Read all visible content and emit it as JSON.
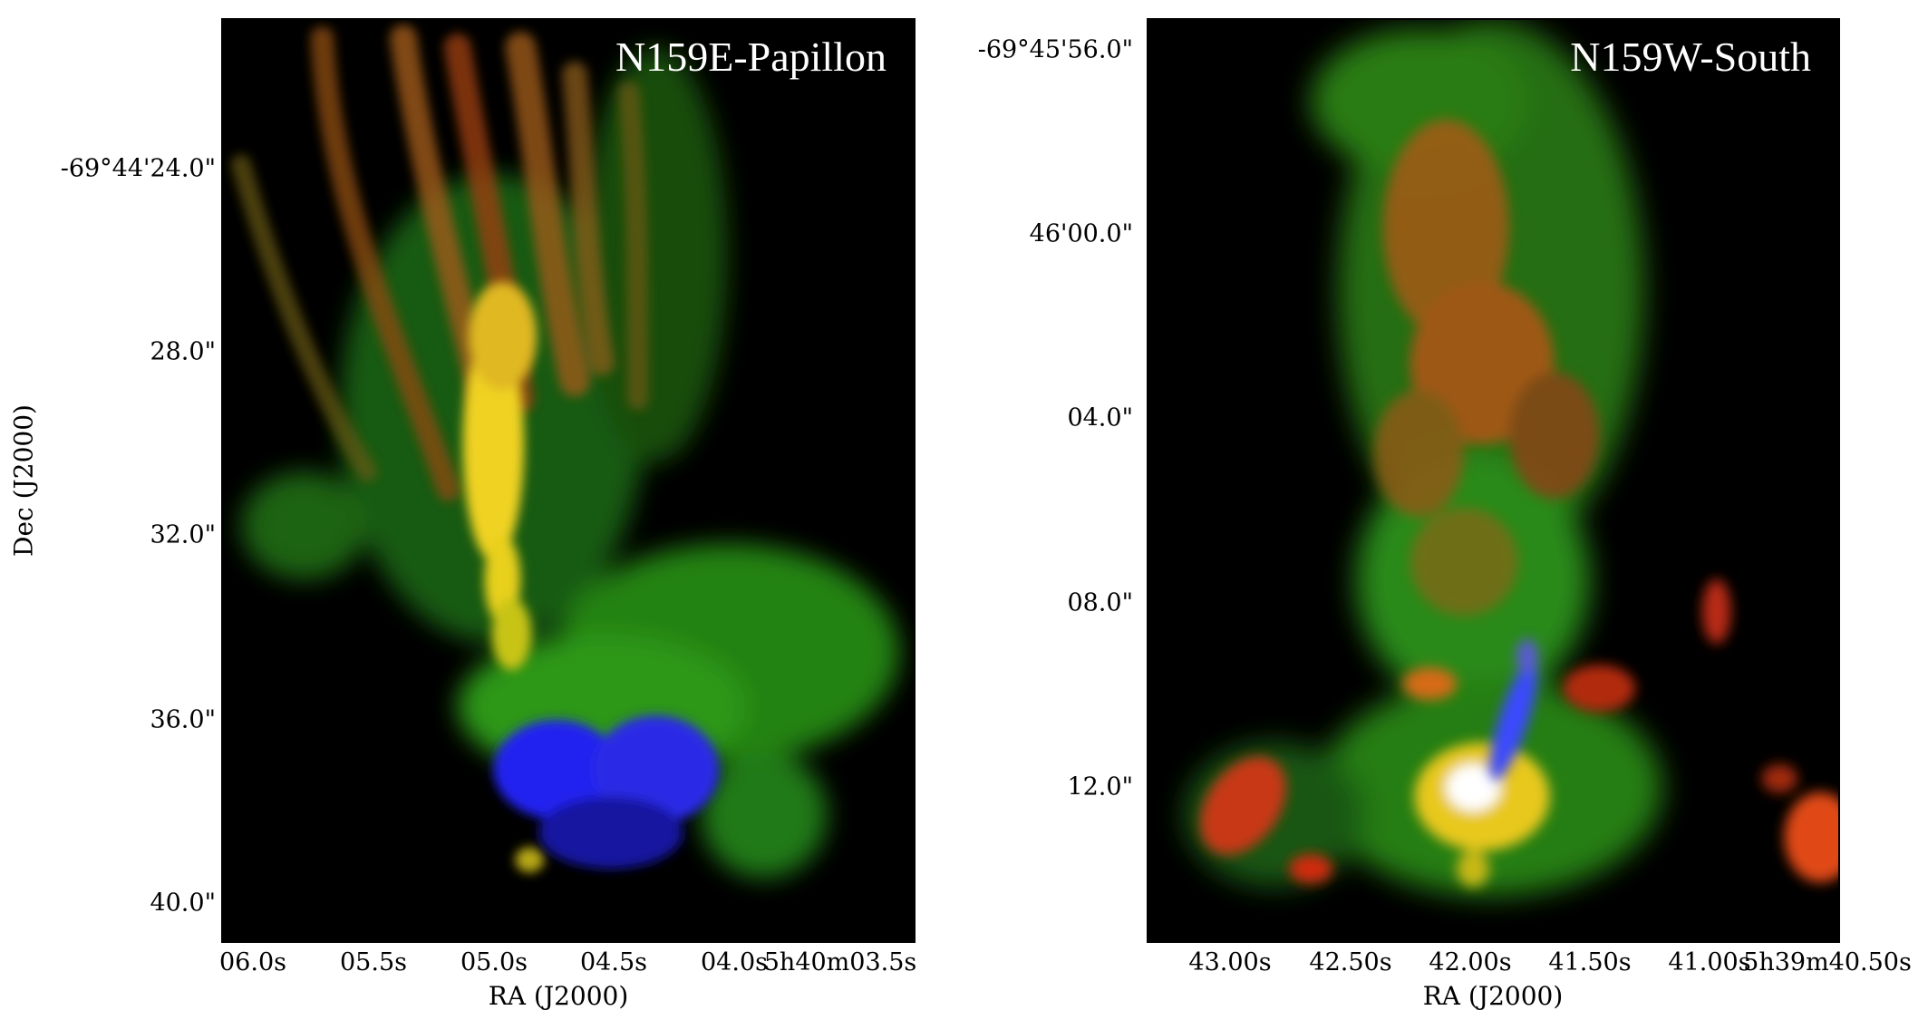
{
  "figure": {
    "ylabel": "Dec (J2000)",
    "panels": [
      {
        "title": "N159E-Papillon",
        "xlabel": "RA (J2000)",
        "xticks": [
          "06.0s",
          "05.5s",
          "05.0s",
          "04.5s",
          "04.0s",
          "5h40m03.5s"
        ],
        "yticks": [
          "-69°44'24.0\"",
          "28.0\"",
          "32.0\"",
          "36.0\"",
          "40.0\""
        ]
      },
      {
        "title": "N159W-South",
        "xlabel": "RA (J2000)",
        "xticks": [
          "43.00s",
          "42.50s",
          "42.00s",
          "41.50s",
          "41.00s",
          "5h39m40.50s"
        ],
        "yticks": [
          "-69°45'56.0\"",
          "46'00.0\"",
          "04.0\"",
          "08.0\"",
          "12.0\""
        ]
      }
    ]
  },
  "colors": {
    "background": "#000000",
    "red_channel": "#d23a12",
    "yellow_blend": "#e8c81c",
    "green_channel": "#2fae1c",
    "blue_channel": "#2a2ae8"
  }
}
